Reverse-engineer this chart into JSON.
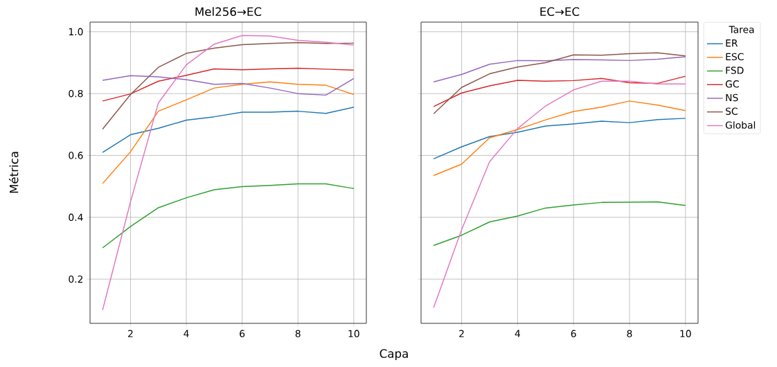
{
  "chart_data": [
    {
      "type": "line",
      "title": "Mel256→EC",
      "xlabel": "Capa",
      "ylabel": "Métrica",
      "x": [
        1,
        2,
        3,
        4,
        5,
        6,
        7,
        8,
        9,
        10
      ],
      "xlim": [
        0.55,
        10.45
      ],
      "ylim": [
        0.057,
        1.031
      ],
      "xticks": [
        2,
        4,
        6,
        8,
        10
      ],
      "yticks": [
        0.2,
        0.4,
        0.6,
        0.8,
        {
          "value": 1.0,
          "label": "1.0"
        }
      ],
      "grid": true,
      "legend": false,
      "series": [
        {
          "color": "#1f77b4",
          "values": [
            0.61,
            0.667,
            0.688,
            0.714,
            0.725,
            0.74,
            0.74,
            0.743,
            0.736,
            0.756
          ]
        },
        {
          "color": "#ff7f0e",
          "values": [
            0.509,
            0.612,
            0.743,
            0.78,
            0.818,
            0.83,
            0.838,
            0.83,
            0.827,
            0.797
          ]
        },
        {
          "color": "#2ca02c",
          "values": [
            0.301,
            0.37,
            0.431,
            0.463,
            0.489,
            0.499,
            0.503,
            0.508,
            0.508,
            0.493
          ]
        },
        {
          "color": "#d62728",
          "values": [
            0.776,
            0.799,
            0.84,
            0.859,
            0.88,
            0.877,
            0.88,
            0.882,
            0.879,
            0.876
          ]
        },
        {
          "color": "#9467bd",
          "values": [
            0.843,
            0.858,
            0.854,
            0.845,
            0.83,
            0.833,
            0.818,
            0.8,
            0.795,
            0.849
          ]
        },
        {
          "color": "#8c564b",
          "values": [
            0.685,
            0.797,
            0.885,
            0.93,
            0.947,
            0.958,
            0.962,
            0.965,
            0.962,
            0.963
          ]
        },
        {
          "color": "#e377c2",
          "values": [
            0.1,
            0.45,
            0.77,
            0.893,
            0.96,
            0.988,
            0.986,
            0.972,
            0.966,
            0.957
          ]
        }
      ]
    },
    {
      "type": "line",
      "title": "EC→EC",
      "legend_title": "Tarea",
      "x": [
        1,
        2,
        3,
        4,
        5,
        6,
        7,
        8,
        9,
        10
      ],
      "xlim": [
        0.55,
        10.45
      ],
      "ylim": [
        0.057,
        1.031
      ],
      "xticks": [
        2,
        4,
        6,
        8,
        10
      ],
      "yticks": [
        0.2,
        0.4,
        0.6,
        0.8,
        1.0
      ],
      "tick_labels": "x",
      "grid": true,
      "legend": "right",
      "series": [
        {
          "name": "ER",
          "color": "#1f77b4",
          "values": [
            0.589,
            0.628,
            0.661,
            0.675,
            0.695,
            0.702,
            0.711,
            0.706,
            0.716,
            0.72
          ]
        },
        {
          "name": "ESC",
          "color": "#ff7f0e",
          "values": [
            0.535,
            0.572,
            0.657,
            0.684,
            0.715,
            0.742,
            0.756,
            0.776,
            0.763,
            0.745
          ]
        },
        {
          "name": "FSD",
          "color": "#2ca02c",
          "values": [
            0.309,
            0.342,
            0.385,
            0.404,
            0.43,
            0.44,
            0.448,
            0.449,
            0.45,
            0.438
          ]
        },
        {
          "name": "GC",
          "color": "#d62728",
          "values": [
            0.758,
            0.802,
            0.825,
            0.843,
            0.84,
            0.842,
            0.849,
            0.835,
            0.833,
            0.856
          ]
        },
        {
          "name": "NS",
          "color": "#9467bd",
          "values": [
            0.838,
            0.862,
            0.895,
            0.907,
            0.906,
            0.91,
            0.909,
            0.907,
            0.911,
            0.919
          ]
        },
        {
          "name": "SC",
          "color": "#8c564b",
          "values": [
            0.735,
            0.82,
            0.864,
            0.886,
            0.9,
            0.925,
            0.924,
            0.929,
            0.932,
            0.922
          ]
        },
        {
          "name": "Global",
          "color": "#e377c2",
          "values": [
            0.108,
            0.36,
            0.58,
            0.687,
            0.76,
            0.812,
            0.84,
            0.84,
            0.831,
            0.831
          ]
        }
      ]
    }
  ]
}
